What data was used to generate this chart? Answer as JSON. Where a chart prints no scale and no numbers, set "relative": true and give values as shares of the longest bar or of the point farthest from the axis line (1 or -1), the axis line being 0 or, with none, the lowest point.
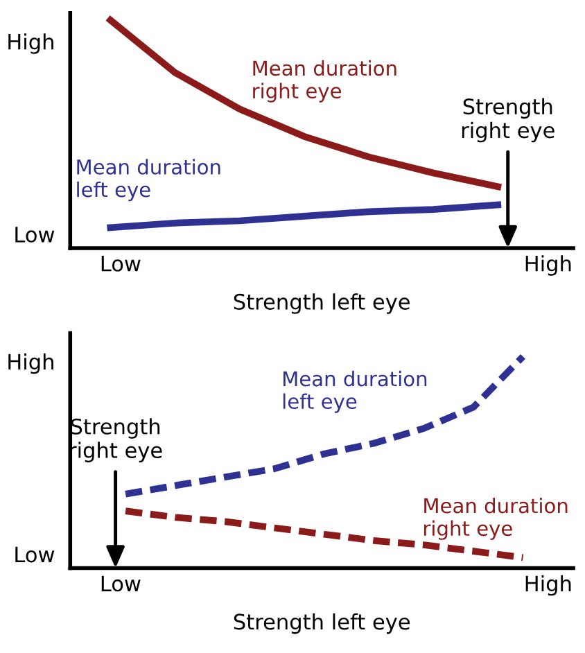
{
  "chart_data": [
    {
      "type": "line",
      "relative": true,
      "xlabel": "Strength left eye",
      "categories": [
        null,
        null,
        null,
        null,
        null,
        null,
        null
      ],
      "grid": false,
      "legend": false,
      "line_style": "solid",
      "annotations": [
        "High",
        "Low",
        "Low",
        "High",
        "Strength\nright eye"
      ],
      "series": [
        {
          "name": "Mean duration\nright eye",
          "color": "#8b1a1a",
          "values": [
            1.0,
            0.77,
            0.61,
            0.49,
            0.4,
            0.33,
            0.27
          ]
        },
        {
          "name": "Mean duration\nleft eye",
          "color": "#2e3192",
          "values": [
            0.09,
            0.11,
            0.12,
            0.14,
            0.16,
            0.17,
            0.19
          ]
        }
      ]
    },
    {
      "type": "line",
      "relative": true,
      "xlabel": "Strength left eye",
      "categories": [
        null,
        null,
        null,
        null,
        null,
        null,
        null,
        null,
        null
      ],
      "grid": false,
      "legend": false,
      "line_style": "dashed",
      "annotations": [
        "High",
        "Low",
        "Low",
        "High",
        "Strength\nright eye"
      ],
      "series": [
        {
          "name": "Mean duration\nleft eye",
          "color": "#2e3192",
          "values": [
            0.35,
            0.39,
            0.43,
            0.47,
            0.54,
            0.59,
            0.66,
            0.76,
            1.0
          ]
        },
        {
          "name": "Mean duration\nright eye",
          "color": "#8b1a1a",
          "values": [
            0.27,
            0.24,
            0.22,
            0.19,
            0.16,
            0.13,
            0.11,
            0.08,
            0.05
          ]
        }
      ]
    }
  ]
}
